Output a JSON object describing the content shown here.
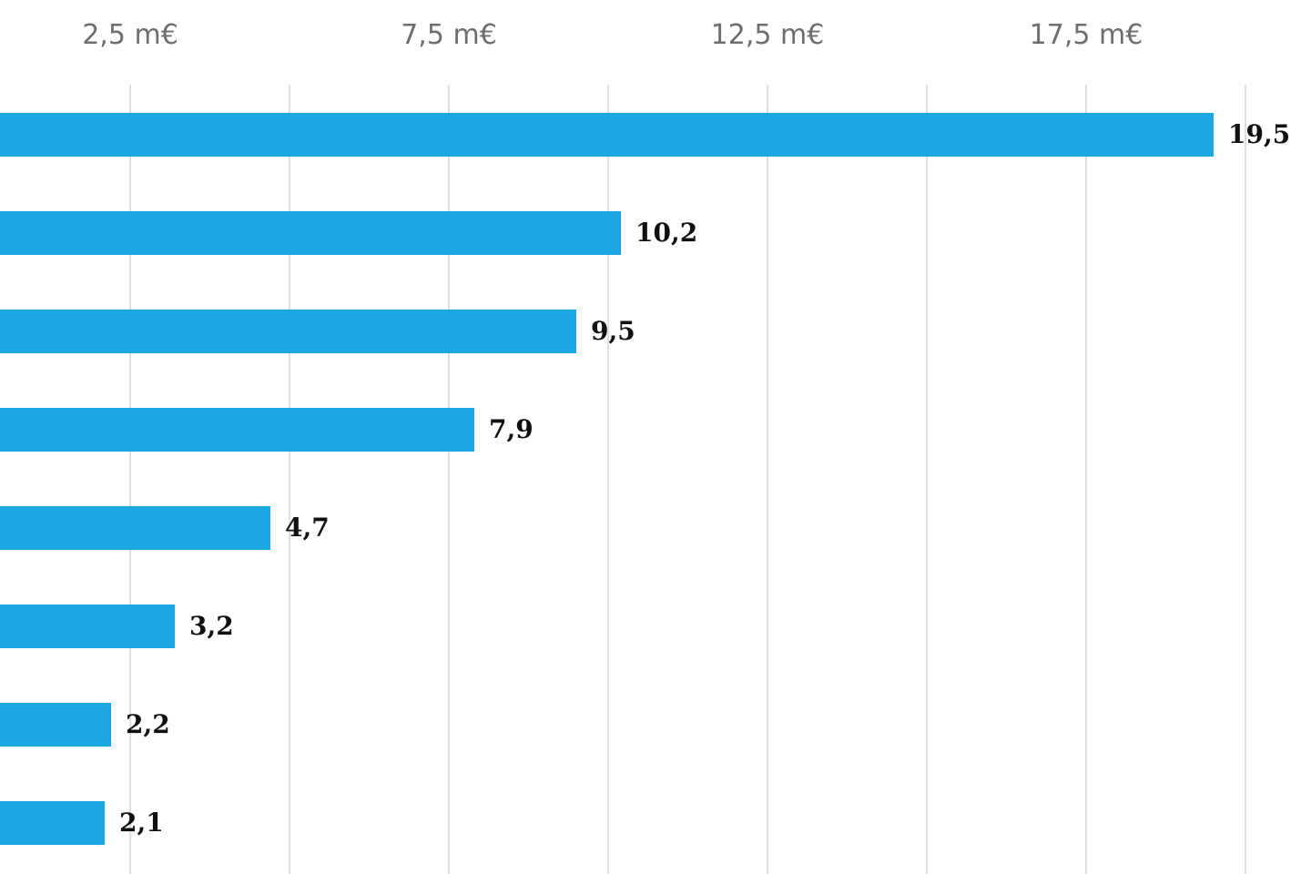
{
  "chart_data": {
    "type": "bar",
    "orientation": "horizontal",
    "x_tick_labels": [
      "2,5 m€",
      "7,5 m€",
      "12,5 m€",
      "17,5 m€"
    ],
    "x_ticks": [
      2.5,
      7.5,
      12.5,
      17.5
    ],
    "gridlines_at": [
      2.5,
      5,
      7.5,
      10,
      12.5,
      15,
      17.5,
      20
    ],
    "values": [
      19.5,
      10.2,
      9.5,
      7.9,
      4.7,
      3.2,
      2.2,
      2.1
    ],
    "value_labels": [
      "19,5",
      "10,2",
      "9,5",
      "7,9",
      "4,7",
      "3,2",
      "2,2",
      "2,1"
    ],
    "grid": true,
    "bar_color": "#1ba7e2",
    "gridline_color": "#e0e0e0",
    "tick_label_color": "#6e6e6e",
    "value_label_color": "#111111"
  }
}
